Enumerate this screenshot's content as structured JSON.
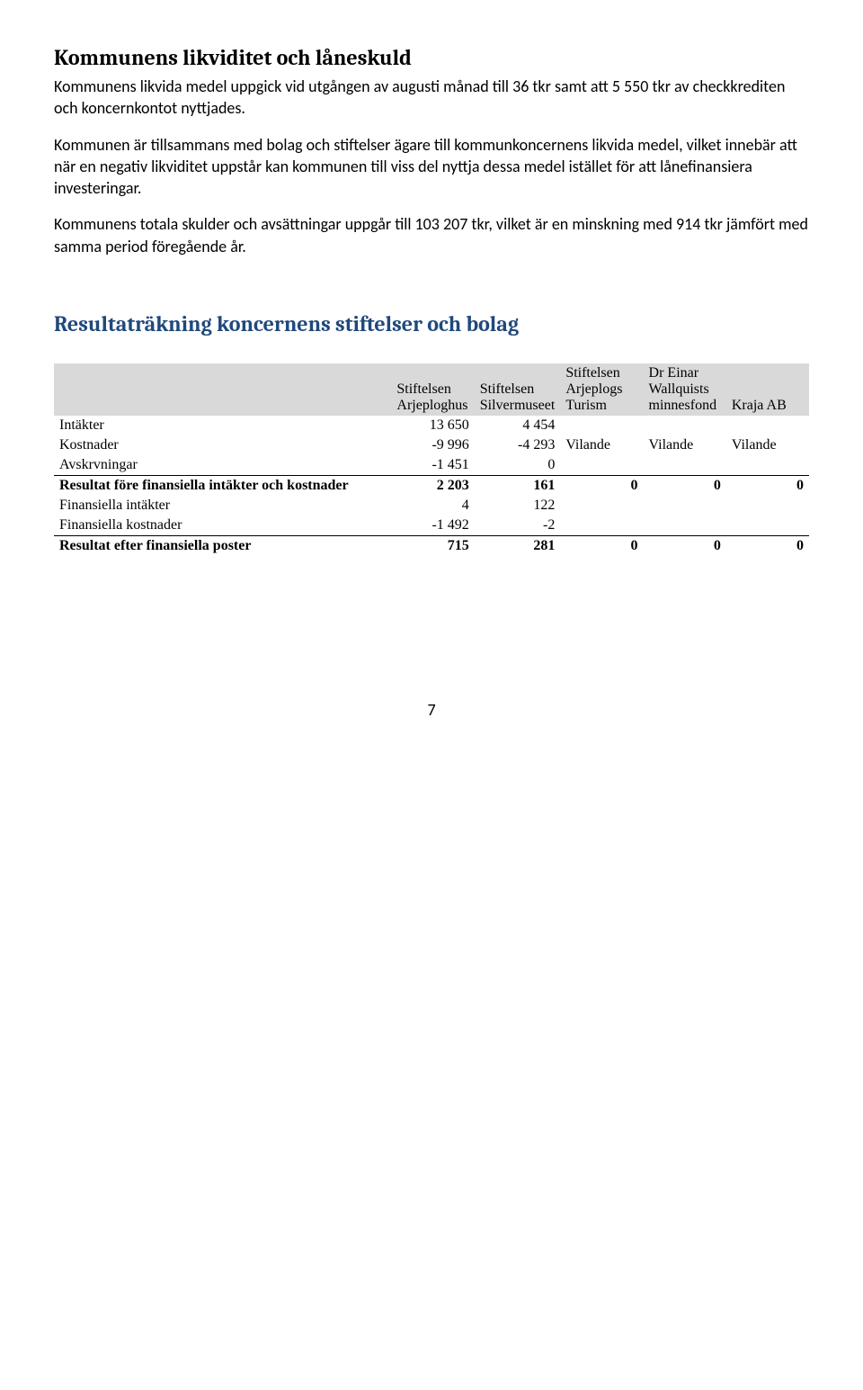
{
  "heading1": "Kommunens likviditet och låneskuld",
  "para1": "Kommunens likvida medel uppgick vid utgången av augusti månad till 36 tkr samt att 5 550 tkr av checkkrediten och koncernkontot nyttjades.",
  "para2": "Kommunen är tillsammans med bolag och stiftelser ägare till kommunkoncernens likvida medel, vilket innebär att när en negativ likviditet uppstår kan kommunen till viss del nyttja dessa medel istället för att lånefinansiera investeringar.",
  "para3": "Kommunens totala skulder och avsättningar uppgår till 103 207  tkr, vilket är en minskning med 914 tkr jämfört med samma period föregående år.",
  "heading2": "Resultaträkning koncernens stiftelser och bolag",
  "table": {
    "cols": [
      {
        "l1": "Stiftelsen",
        "l2": "Arjeploghus"
      },
      {
        "l1": "Stiftelsen",
        "l2": "Silvermuseet"
      },
      {
        "l0": "Stiftelsen",
        "l1": "Arjeplogs",
        "l2": "Turism"
      },
      {
        "l0": "Dr Einar",
        "l1": "Wallquists",
        "l2": "minnesfond"
      },
      {
        "l2": "Kraja AB"
      }
    ],
    "rows": [
      {
        "label": "Intäkter",
        "c1": "13 650",
        "c2": "4 454",
        "c3": "",
        "c4": "",
        "c5": ""
      },
      {
        "label": "Kostnader",
        "c1": "-9 996",
        "c2": "-4 293",
        "c3": "Vilande",
        "c4": "Vilande",
        "c5": "Vilande"
      },
      {
        "label": "Avskrvningar",
        "c1": "-1 451",
        "c2": "0",
        "c3": "",
        "c4": "",
        "c5": "",
        "underline": true
      },
      {
        "label": "Resultat före finansiella intäkter och kostnader",
        "c1": "2 203",
        "c2": "161",
        "c3": "0",
        "c4": "0",
        "c5": "0",
        "bold": true
      },
      {
        "label": "Finansiella intäkter",
        "c1": "4",
        "c2": "122",
        "c3": "",
        "c4": "",
        "c5": ""
      },
      {
        "label": "Finansiella kostnader",
        "c1": "-1 492",
        "c2": "-2",
        "c3": "",
        "c4": "",
        "c5": "",
        "underline": true
      },
      {
        "label": "Resultat efter finansiella poster",
        "c1": "715",
        "c2": "281",
        "c3": "0",
        "c4": "0",
        "c5": "0",
        "bold": true
      }
    ]
  },
  "pageNumber": "7",
  "colors": {
    "headingLink": "#1f497d",
    "headerBg": "#d9d9d9"
  }
}
